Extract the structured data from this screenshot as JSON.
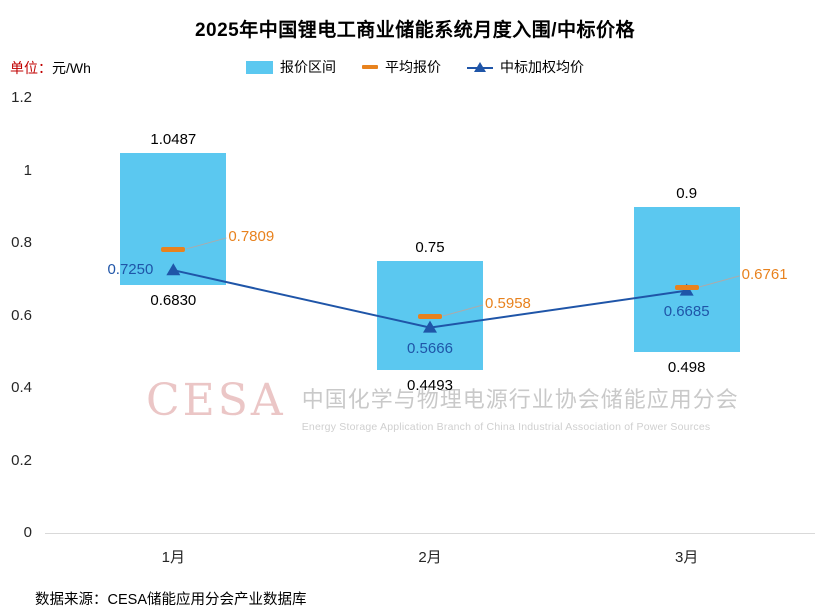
{
  "title": "2025年中国锂电工商业储能系统月度入围/中标价格",
  "unit": {
    "prefix": "单位：",
    "value": "元/Wh"
  },
  "legend": [
    {
      "label": "报价区间"
    },
    {
      "label": "平均报价"
    },
    {
      "label": "中标加权均价"
    }
  ],
  "colors": {
    "bar": "#5BC8F0",
    "avg": "#E8821E",
    "win": "#1F55A8",
    "leader": "#ABABAB",
    "axis": "#D9D9D9",
    "unit_prefix": "#C00000"
  },
  "watermark": {
    "logo": "CESA",
    "chinese": "中国化学与物理电源行业协会储能应用分会",
    "english": "Energy Storage Application Branch of China Industrial Association of Power Sources"
  },
  "source": "数据来源：CESA储能应用分会产业数据库",
  "chart_data": {
    "type": "bar",
    "subtype": "range-bars with average dash markers and weighted-price line",
    "categories": [
      "1月",
      "2月",
      "3月"
    ],
    "series": [
      {
        "name": "报价区间",
        "type": "range_bar",
        "low": [
          0.683,
          0.4493,
          0.498
        ],
        "high": [
          1.0487,
          0.75,
          0.9
        ],
        "low_labels": [
          "0.6830",
          "0.4493",
          "0.498"
        ],
        "high_labels": [
          "1.0487",
          "0.75",
          "0.9"
        ]
      },
      {
        "name": "平均报价",
        "type": "dash_marker",
        "values": [
          0.7809,
          0.5958,
          0.6761
        ],
        "labels": [
          "0.7809",
          "0.5958",
          "0.6761"
        ]
      },
      {
        "name": "中标加权均价",
        "type": "line_triangle",
        "values": [
          0.725,
          0.5666,
          0.6685
        ],
        "labels": [
          "0.7250",
          "0.5666",
          "0.6685"
        ],
        "label_positions": [
          "left",
          "below",
          "below"
        ]
      }
    ],
    "ylabel": "元/Wh",
    "ylim": [
      0,
      1.2
    ],
    "yticks": [
      0,
      0.2,
      0.4,
      0.6,
      0.8,
      1,
      1.2
    ],
    "ytick_labels": [
      "0",
      "0.2",
      "0.4",
      "0.6",
      "0.8",
      "1",
      "1.2"
    ],
    "grid": false,
    "legend_position": "top-center"
  }
}
